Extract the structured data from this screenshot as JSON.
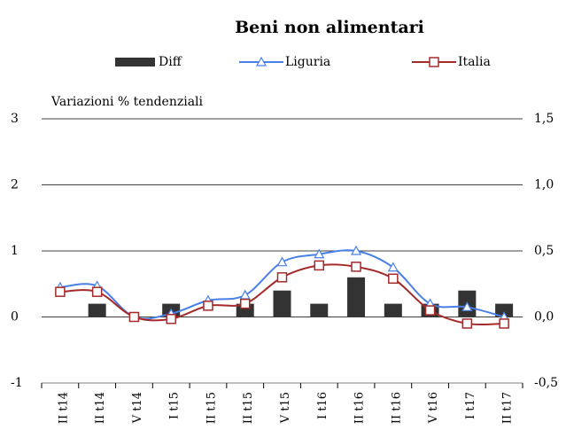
{
  "chart_data": {
    "type": "bar-line",
    "title": "Beni non alimentari",
    "y_label": "Variazioni % tendenziali",
    "categories": [
      "II t14",
      "II t14",
      "V t14",
      "I t15",
      "II t15",
      "II t15",
      "V t15",
      "I t16",
      "II t16",
      "II t16",
      "V t16",
      "I t17",
      "II t17"
    ],
    "series": [
      {
        "name": "Diff",
        "type": "bar",
        "color": "#333333",
        "axis": "y2",
        "values": [
          0,
          0.1,
          0,
          0.1,
          0,
          0.1,
          0.2,
          0.1,
          0.3,
          0.1,
          0.1,
          0.2,
          0.1
        ]
      },
      {
        "name": "Liguria",
        "type": "line",
        "marker": "triangle",
        "color": "#4a7fe8",
        "values": [
          0.45,
          0.47,
          0.0,
          0.05,
          0.25,
          0.33,
          0.83,
          0.95,
          1.0,
          0.75,
          0.2,
          0.15,
          0.0
        ]
      },
      {
        "name": "Italia",
        "type": "line",
        "marker": "square",
        "color": "#a52a2a",
        "values": [
          0.38,
          0.38,
          0.0,
          -0.03,
          0.17,
          0.2,
          0.6,
          0.78,
          0.76,
          0.58,
          0.1,
          -0.1,
          -0.1
        ]
      }
    ],
    "ylim": [
      -1,
      3
    ],
    "yticks": [
      -1,
      0,
      1,
      2,
      3
    ],
    "y2lim": [
      -0.5,
      1.5
    ],
    "y2ticks": [
      {
        "value": -0.5,
        "label": "-0,5"
      },
      {
        "value": 0,
        "label": "0,0"
      },
      {
        "value": 0.5,
        "label": "0,5"
      },
      {
        "value": 1,
        "label": "1,0"
      },
      {
        "value": 1.5,
        "label": "1,5"
      }
    ],
    "grid": true
  }
}
